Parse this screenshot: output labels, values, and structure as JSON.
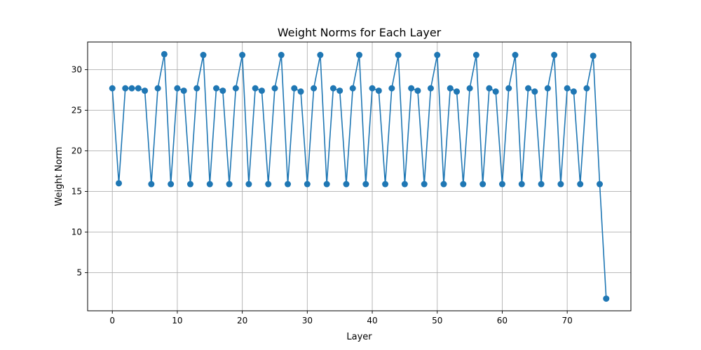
{
  "chart_data": {
    "type": "line",
    "title": "Weight Norms for Each Layer",
    "xlabel": "Layer",
    "ylabel": "Weight Norm",
    "xlim": [
      -3.8,
      79.8
    ],
    "ylim": [
      0.3,
      33.4
    ],
    "xticks": [
      0,
      10,
      20,
      30,
      40,
      50,
      60,
      70
    ],
    "yticks": [
      5,
      10,
      15,
      20,
      25,
      30
    ],
    "grid": true,
    "marker": "circle",
    "color": "#1f77b4",
    "x": [
      0,
      1,
      2,
      3,
      4,
      5,
      6,
      7,
      8,
      9,
      10,
      11,
      12,
      13,
      14,
      15,
      16,
      17,
      18,
      19,
      20,
      21,
      22,
      23,
      24,
      25,
      26,
      27,
      28,
      29,
      30,
      31,
      32,
      33,
      34,
      35,
      36,
      37,
      38,
      39,
      40,
      41,
      42,
      43,
      44,
      45,
      46,
      47,
      48,
      49,
      50,
      51,
      52,
      53,
      54,
      55,
      56,
      57,
      58,
      59,
      60,
      61,
      62,
      63,
      64,
      65,
      66,
      67,
      68,
      69,
      70,
      71,
      72,
      73,
      74,
      75,
      76
    ],
    "y": [
      27.7,
      16.0,
      27.7,
      27.7,
      27.7,
      27.4,
      15.9,
      27.7,
      31.9,
      15.9,
      27.7,
      27.4,
      15.9,
      27.7,
      31.8,
      15.9,
      27.7,
      27.4,
      15.9,
      27.7,
      31.8,
      15.9,
      27.7,
      27.4,
      15.9,
      27.7,
      31.8,
      15.9,
      27.7,
      27.3,
      15.9,
      27.7,
      31.8,
      15.9,
      27.7,
      27.4,
      15.9,
      27.7,
      31.8,
      15.9,
      27.7,
      27.4,
      15.9,
      27.7,
      31.8,
      15.9,
      27.7,
      27.4,
      15.9,
      27.7,
      31.8,
      15.9,
      27.7,
      27.3,
      15.9,
      27.7,
      31.8,
      15.9,
      27.7,
      27.3,
      15.9,
      27.7,
      31.8,
      15.9,
      27.7,
      27.3,
      15.9,
      27.7,
      31.8,
      15.9,
      27.7,
      27.3,
      15.9,
      27.7,
      31.7,
      15.9,
      1.8
    ]
  }
}
